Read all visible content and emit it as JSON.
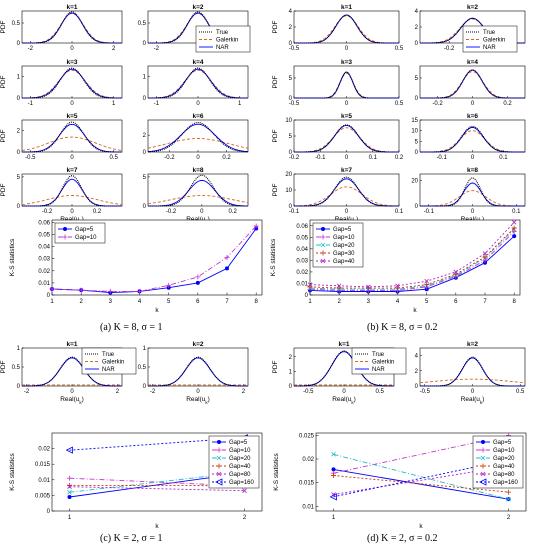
{
  "captions": [
    "(a)  K = 8, σ = 1",
    "(b)  K = 8, σ = 0.2",
    "(c)  K = 2, σ = 1",
    "(d)  K = 2, σ = 0.2"
  ],
  "colors": {
    "true": "#000000",
    "galerkin": "#d2691e",
    "nar": "#0000ff"
  },
  "pdf_legend": [
    "True",
    "Galerkin",
    "NAR"
  ],
  "chart_data": [
    {
      "panel": "a",
      "type": "line",
      "pdf_ylabel": "PDF",
      "pdf_xlabel": "Real(u_k)",
      "pdfs": [
        {
          "title": "k=1",
          "xlim": [
            -2.4,
            2.4
          ],
          "xticks": [
            "-2",
            "0",
            "2"
          ],
          "ylim": [
            0,
            0.8
          ],
          "yticks": [
            "0",
            "0.5"
          ],
          "true_sd": 0.5,
          "true_peak": 0.78,
          "nar_sd": 0.52,
          "nar_peak": 0.75,
          "gal_sd": 0.55,
          "gal_peak": 0.74
        },
        {
          "title": "k=2",
          "xlim": [
            -2.4,
            2.4
          ],
          "xticks": [
            "-2",
            "0",
            "2"
          ],
          "ylim": [
            0,
            0.8
          ],
          "yticks": [
            "0",
            "0.5"
          ],
          "true_sd": 0.5,
          "true_peak": 0.78,
          "nar_sd": 0.52,
          "nar_peak": 0.75,
          "gal_sd": 0.55,
          "gal_peak": 0.74
        },
        {
          "title": "k=3",
          "xlim": [
            -1.2,
            1.2
          ],
          "xticks": [
            "-1",
            "0",
            "1"
          ],
          "ylim": [
            0,
            1.5
          ],
          "yticks": [
            "0",
            "1"
          ],
          "true_sd": 0.28,
          "true_peak": 1.4,
          "nar_sd": 0.3,
          "nar_peak": 1.35,
          "gal_sd": 0.32,
          "gal_peak": 1.3
        },
        {
          "title": "k=4",
          "xlim": [
            -1.2,
            1.2
          ],
          "xticks": [
            "-1",
            "0",
            "1"
          ],
          "ylim": [
            0,
            1.5
          ],
          "yticks": [
            "0",
            "1"
          ],
          "true_sd": 0.28,
          "true_peak": 1.4,
          "nar_sd": 0.3,
          "nar_peak": 1.35,
          "gal_sd": 0.32,
          "gal_peak": 1.3
        },
        {
          "title": "k=5",
          "xlim": [
            -0.6,
            0.6
          ],
          "xticks": [
            "-0.5",
            "0",
            "0.5"
          ],
          "ylim": [
            0,
            3
          ],
          "yticks": [
            "0",
            "2"
          ],
          "true_sd": 0.14,
          "true_peak": 2.8,
          "nar_sd": 0.15,
          "nar_peak": 2.6,
          "gal_sd": 0.28,
          "gal_peak": 1.4
        },
        {
          "title": "k=6",
          "xlim": [
            -0.35,
            0.35
          ],
          "xticks": [
            "-0.2",
            "0",
            "0.2"
          ],
          "ylim": [
            0,
            3.8
          ],
          "yticks": [
            "0",
            "2"
          ],
          "true_sd": 0.11,
          "true_peak": 3.5,
          "nar_sd": 0.12,
          "nar_peak": 3.3,
          "gal_sd": 0.22,
          "gal_peak": 1.6
        },
        {
          "title": "k=7",
          "xlim": [
            -0.4,
            0.4
          ],
          "xticks": [
            "-0.2",
            "0",
            "0.2"
          ],
          "ylim": [
            0,
            5.5
          ],
          "yticks": [
            "0",
            "5"
          ],
          "true_sd": 0.075,
          "true_peak": 5.2,
          "nar_sd": 0.08,
          "nar_peak": 4.6,
          "gal_sd": 0.2,
          "gal_peak": 1.8
        },
        {
          "title": "k=8",
          "xlim": [
            -0.35,
            0.3
          ],
          "xticks": [
            "-0.2",
            "0",
            "0.2"
          ],
          "ylim": [
            0,
            5.5
          ],
          "yticks": [
            "0",
            "5"
          ],
          "true_sd": 0.075,
          "true_peak": 5.3,
          "nar_sd": 0.085,
          "nar_peak": 4.4,
          "gal_sd": 0.2,
          "gal_peak": 1.8
        }
      ],
      "ks": {
        "x": [
          1,
          2,
          3,
          4,
          5,
          6,
          7,
          8
        ],
        "xlim": [
          1,
          8.2
        ],
        "ylim": [
          0,
          0.062
        ],
        "yticks": [
          0,
          0.01,
          0.02,
          0.03,
          0.04,
          0.05,
          0.06
        ],
        "ytick_labels": [
          "0",
          "0.01",
          "0.02",
          "0.03",
          "0.04",
          "0.05",
          "0.06"
        ],
        "xlabel": "k",
        "ylabel": "K-S statistics",
        "series": [
          {
            "name": "Gap=5",
            "color": "#0000ff",
            "marker": "dot",
            "dash": "",
            "values": [
              0.005,
              0.004,
              0.002,
              0.003,
              0.006,
              0.01,
              0.022,
              0.055
            ]
          },
          {
            "name": "Gap=10",
            "color": "#cc33cc",
            "marker": "plus",
            "dash": "5,2,1,2",
            "values": [
              0.005,
              0.004,
              0.003,
              0.003,
              0.008,
              0.015,
              0.031,
              0.057
            ]
          }
        ]
      }
    },
    {
      "panel": "b",
      "type": "line",
      "pdf_ylabel": "PDF",
      "pdf_xlabel": "Real(u_k)",
      "pdfs": [
        {
          "title": "k=1",
          "xlim": [
            -0.5,
            0.5
          ],
          "xticks": [
            "-0.5",
            "0",
            "0.5"
          ],
          "ylim": [
            0,
            4
          ],
          "yticks": [
            "0",
            "2",
            "4"
          ],
          "true_sd": 0.1,
          "true_peak": 3.5,
          "nar_sd": 0.1,
          "nar_peak": 3.5,
          "gal_sd": 0.11,
          "gal_peak": 3.4
        },
        {
          "title": "k=2",
          "xlim": [
            -0.45,
            0.45
          ],
          "xticks": [
            "-0.2",
            "0",
            "0.2"
          ],
          "ylim": [
            0,
            4
          ],
          "yticks": [
            "0",
            "2",
            "4"
          ],
          "true_sd": 0.1,
          "true_peak": 3.1,
          "nar_sd": 0.1,
          "nar_peak": 3.1,
          "gal_sd": 0.11,
          "gal_peak": 3.0
        },
        {
          "title": "k=3",
          "xlim": [
            -0.5,
            0.5
          ],
          "xticks": [
            "-0.5",
            "0",
            "0.5"
          ],
          "ylim": [
            0,
            8
          ],
          "yticks": [
            "0",
            "5"
          ],
          "true_sd": 0.06,
          "true_peak": 6.5,
          "nar_sd": 0.06,
          "nar_peak": 6.5,
          "gal_sd": 0.065,
          "gal_peak": 6.2
        },
        {
          "title": "k=4",
          "xlim": [
            -0.3,
            0.3
          ],
          "xticks": [
            "-0.2",
            "0",
            "0.2"
          ],
          "ylim": [
            0,
            8
          ],
          "yticks": [
            "0",
            "5"
          ],
          "true_sd": 0.055,
          "true_peak": 7.0,
          "nar_sd": 0.055,
          "nar_peak": 7.0,
          "gal_sd": 0.06,
          "gal_peak": 6.6
        },
        {
          "title": "k=5",
          "xlim": [
            -0.2,
            0.2
          ],
          "xticks": [
            "-0.2",
            "-0.1",
            "0",
            "0.1",
            "0.2"
          ],
          "ylim": [
            0,
            10
          ],
          "yticks": [
            "0",
            "5",
            "10"
          ],
          "true_sd": 0.045,
          "true_peak": 8.5,
          "nar_sd": 0.045,
          "nar_peak": 8.3,
          "gal_sd": 0.05,
          "gal_peak": 7.6
        },
        {
          "title": "k=6",
          "xlim": [
            -0.17,
            0.17
          ],
          "xticks": [
            "-0.1",
            "0",
            "0.1"
          ],
          "ylim": [
            0,
            15
          ],
          "yticks": [
            "0",
            "5",
            "10",
            "15"
          ],
          "true_sd": 0.035,
          "true_peak": 12,
          "nar_sd": 0.035,
          "nar_peak": 11.5,
          "gal_sd": 0.04,
          "gal_peak": 10
        },
        {
          "title": "k=7",
          "xlim": [
            -0.1,
            0.1
          ],
          "xticks": [
            "-0.1",
            "0",
            "0.1"
          ],
          "ylim": [
            0,
            20
          ],
          "yticks": [
            "0",
            "10",
            "20"
          ],
          "true_sd": 0.022,
          "true_peak": 18,
          "nar_sd": 0.023,
          "nar_peak": 17,
          "gal_sd": 0.03,
          "gal_peak": 12
        },
        {
          "title": "k=8",
          "xlim": [
            -0.12,
            0.12
          ],
          "xticks": [
            "-0.1",
            "0",
            "0.1"
          ],
          "ylim": [
            0,
            25
          ],
          "yticks": [
            "0",
            "20"
          ],
          "true_sd": 0.018,
          "true_peak": 22,
          "nar_sd": 0.02,
          "nar_peak": 18,
          "gal_sd": 0.03,
          "gal_peak": 12
        }
      ],
      "ks": {
        "x": [
          1,
          2,
          3,
          4,
          5,
          6,
          7,
          8
        ],
        "xlim": [
          1,
          8.2
        ],
        "ylim": [
          0,
          0.065
        ],
        "yticks": [
          0,
          0.01,
          0.02,
          0.03,
          0.04,
          0.05,
          0.06
        ],
        "ytick_labels": [
          "0",
          "0.01",
          "0.02",
          "0.03",
          "0.04",
          "0.05",
          "0.06"
        ],
        "xlabel": "k",
        "ylabel": "K-S statistics",
        "series": [
          {
            "name": "Gap=5",
            "color": "#0000ff",
            "marker": "dot",
            "dash": "",
            "values": [
              0.004,
              0.003,
              0.003,
              0.003,
              0.005,
              0.015,
              0.028,
              0.051
            ]
          },
          {
            "name": "Gap=10",
            "color": "#cc33cc",
            "marker": "plus",
            "dash": "5,2,1,2",
            "values": [
              0.005,
              0.004,
              0.004,
              0.004,
              0.007,
              0.016,
              0.03,
              0.055
            ]
          },
          {
            "name": "Gap=20",
            "color": "#22bbcc",
            "marker": "x",
            "dash": "5,2,1,2",
            "values": [
              0.006,
              0.005,
              0.005,
              0.005,
              0.008,
              0.017,
              0.032,
              0.057
            ]
          },
          {
            "name": "Gap=30",
            "color": "#cc3300",
            "marker": "plus",
            "dash": "2,2",
            "values": [
              0.007,
              0.006,
              0.006,
              0.006,
              0.009,
              0.018,
              0.033,
              0.058
            ]
          },
          {
            "name": "Gap=40",
            "color": "#aa22cc",
            "marker": "x",
            "dash": "2,2",
            "values": [
              0.009,
              0.008,
              0.007,
              0.008,
              0.012,
              0.02,
              0.036,
              0.063
            ]
          }
        ]
      }
    },
    {
      "panel": "c",
      "type": "line",
      "pdf_ylabel": "PDF",
      "pdf_xlabel": "Real(u_k)",
      "pdfs": [
        {
          "title": "k=1",
          "xlim": [
            -2.2,
            2.2
          ],
          "xticks": [
            "-2",
            "0",
            "2"
          ],
          "ylim": [
            0,
            1.0
          ],
          "yticks": [
            "0",
            "0.5",
            "1"
          ],
          "true_sd": 0.52,
          "true_peak": 0.76,
          "nar_sd": 0.52,
          "nar_peak": 0.74,
          "gal_sd": 10,
          "gal_peak": 0.03
        },
        {
          "title": "k=2",
          "xlim": [
            -2.2,
            2.2
          ],
          "xticks": [
            "-2",
            "0",
            "2"
          ],
          "ylim": [
            0,
            1.0
          ],
          "yticks": [
            "0",
            "0.5",
            "1"
          ],
          "true_sd": 0.52,
          "true_peak": 0.76,
          "nar_sd": 0.52,
          "nar_peak": 0.74,
          "gal_sd": 10,
          "gal_peak": 0.03
        }
      ],
      "ks": {
        "x": [
          1,
          2
        ],
        "xlim": [
          0.9,
          2.1
        ],
        "ylim": [
          0,
          0.025
        ],
        "yticks": [
          0,
          0.005,
          0.01,
          0.015,
          0.02
        ],
        "ytick_labels": [
          "0",
          "0.005",
          "0.01",
          "0.015",
          "0.02"
        ],
        "xlabel": "k",
        "ylabel": "K-S statistics",
        "series": [
          {
            "name": "Gap=5",
            "color": "#0000ff",
            "marker": "dot",
            "dash": "",
            "values": [
              0.0045,
              0.0122
            ]
          },
          {
            "name": "Gap=10",
            "color": "#cc33cc",
            "marker": "plus",
            "dash": "5,2,1,2",
            "values": [
              0.0105,
              0.008
            ]
          },
          {
            "name": "Gap=20",
            "color": "#22bbcc",
            "marker": "x",
            "dash": "5,2,1,2",
            "values": [
              0.006,
              0.0125
            ]
          },
          {
            "name": "Gap=40",
            "color": "#cc3300",
            "marker": "plus",
            "dash": "2,2",
            "values": [
              0.0082,
              0.0081
            ]
          },
          {
            "name": "Gap=80",
            "color": "#aa22cc",
            "marker": "x",
            "dash": "2,2",
            "values": [
              0.0078,
              0.0065
            ]
          },
          {
            "name": "Gap=160",
            "color": "#0000ff",
            "marker": "tri",
            "dash": "2,2",
            "values": [
              0.0195,
              0.0235
            ]
          }
        ]
      }
    },
    {
      "panel": "d",
      "type": "line",
      "pdf_ylabel": "PDF",
      "pdf_xlabel": "Real(u_k)",
      "pdfs": [
        {
          "title": "k=1",
          "xlim": [
            -0.7,
            0.7
          ],
          "xticks": [
            "-0.5",
            "0",
            "0.5"
          ],
          "ylim": [
            0,
            2.6
          ],
          "yticks": [
            "0",
            "1",
            "2"
          ],
          "true_sd": 0.17,
          "true_peak": 2.4,
          "nar_sd": 0.17,
          "nar_peak": 2.35,
          "gal_sd": 5,
          "gal_peak": 0.07
        },
        {
          "title": "k=2",
          "xlim": [
            -0.55,
            0.55
          ],
          "xticks": [
            "-0.5",
            "0",
            "0.5"
          ],
          "ylim": [
            0,
            5
          ],
          "yticks": [
            "0",
            "2",
            "4"
          ],
          "true_sd": 0.105,
          "true_peak": 3.8,
          "nar_sd": 0.105,
          "nar_peak": 3.7,
          "gal_sd": 0.45,
          "gal_peak": 0.9
        }
      ],
      "ks": {
        "x": [
          1,
          2
        ],
        "xlim": [
          0.9,
          2.1
        ],
        "ylim": [
          0.009,
          0.0255
        ],
        "yticks": [
          0.01,
          0.015,
          0.02,
          0.025
        ],
        "ytick_labels": [
          "0.01",
          "0.015",
          "0.02",
          "0.025"
        ],
        "xlabel": "k",
        "ylabel": "K-S statistics",
        "series": [
          {
            "name": "Gap=5",
            "color": "#0000ff",
            "marker": "dot",
            "dash": "",
            "values": [
              0.0178,
              0.0115
            ]
          },
          {
            "name": "Gap=10",
            "color": "#cc33cc",
            "marker": "plus",
            "dash": "5,2,1,2",
            "values": [
              0.017,
              0.025
            ]
          },
          {
            "name": "Gap=20",
            "color": "#22bbcc",
            "marker": "x",
            "dash": "5,2,1,2",
            "values": [
              0.021,
              0.0115
            ]
          },
          {
            "name": "Gap=40",
            "color": "#cc3300",
            "marker": "plus",
            "dash": "2,2",
            "values": [
              0.0165,
              0.013
            ]
          },
          {
            "name": "Gap=80",
            "color": "#aa22cc",
            "marker": "x",
            "dash": "2,2",
            "values": [
              0.0125,
              0.0185
            ]
          },
          {
            "name": "Gap=160",
            "color": "#0000ff",
            "marker": "tri",
            "dash": "2,2",
            "values": [
              0.012,
              0.0198
            ]
          }
        ]
      }
    }
  ]
}
